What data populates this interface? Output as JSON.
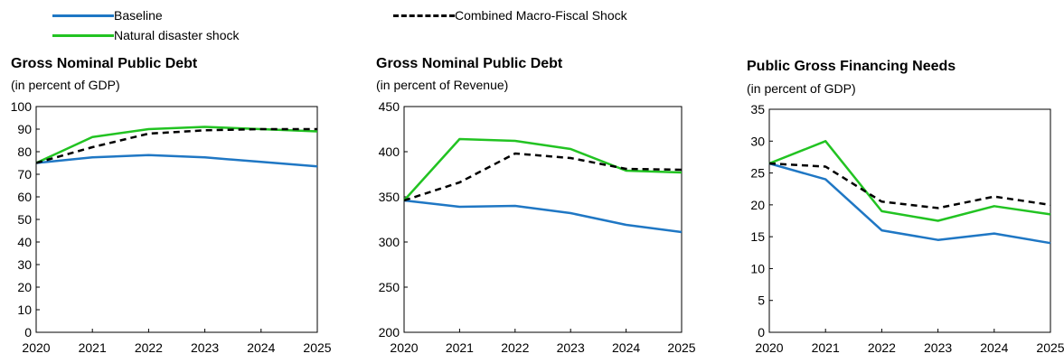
{
  "legend": {
    "items": [
      {
        "label": "Baseline",
        "color": "#1f77c4",
        "style": "solid"
      },
      {
        "label": "Natural disaster shock",
        "color": "#22c322",
        "style": "solid"
      },
      {
        "label": "Combined Macro-Fiscal Shock",
        "color": "#000000",
        "style": "dashed"
      }
    ]
  },
  "chart_data": [
    {
      "type": "line",
      "title": "Gross Nominal Public Debt",
      "subtitle": "(in percent of GDP)",
      "x": [
        "2020",
        "2021",
        "2022",
        "2023",
        "2024",
        "2025"
      ],
      "ylim": [
        0,
        100
      ],
      "yticks": [
        0,
        10,
        20,
        30,
        40,
        50,
        60,
        70,
        80,
        90,
        100
      ],
      "series": [
        {
          "name": "Baseline",
          "values": [
            75,
            77.5,
            78.5,
            77.5,
            75.5,
            73.5
          ]
        },
        {
          "name": "Natural disaster shock",
          "values": [
            75,
            86.5,
            90,
            91,
            90,
            89
          ]
        },
        {
          "name": "Combined Macro-Fiscal Shock",
          "values": [
            75,
            82,
            88,
            89.5,
            90,
            90
          ]
        }
      ]
    },
    {
      "type": "line",
      "title": "Gross Nominal Public Debt",
      "subtitle": "(in percent of Revenue)",
      "x": [
        "2020",
        "2021",
        "2022",
        "2023",
        "2024",
        "2025"
      ],
      "ylim": [
        200,
        450
      ],
      "yticks": [
        200,
        250,
        300,
        350,
        400,
        450
      ],
      "series": [
        {
          "name": "Baseline",
          "values": [
            346,
            339,
            340,
            332,
            319,
            311
          ]
        },
        {
          "name": "Natural disaster shock",
          "values": [
            346,
            414,
            412,
            403,
            379,
            377
          ]
        },
        {
          "name": "Combined Macro-Fiscal Shock",
          "values": [
            346,
            366,
            398,
            393,
            381,
            380
          ]
        }
      ]
    },
    {
      "type": "line",
      "title": "Public Gross Financing Needs",
      "subtitle": "(in percent of GDP)",
      "x": [
        "2020",
        "2021",
        "2022",
        "2023",
        "2024",
        "2025"
      ],
      "ylim": [
        0,
        35
      ],
      "yticks": [
        0,
        5,
        10,
        15,
        20,
        25,
        30,
        35
      ],
      "series": [
        {
          "name": "Baseline",
          "values": [
            26.5,
            24,
            16,
            14.5,
            15.5,
            14
          ]
        },
        {
          "name": "Natural disaster shock",
          "values": [
            26.5,
            30,
            19,
            17.5,
            19.8,
            18.5
          ]
        },
        {
          "name": "Combined Macro-Fiscal Shock",
          "values": [
            26.5,
            26,
            20.5,
            19.5,
            21.3,
            20
          ]
        }
      ]
    }
  ]
}
